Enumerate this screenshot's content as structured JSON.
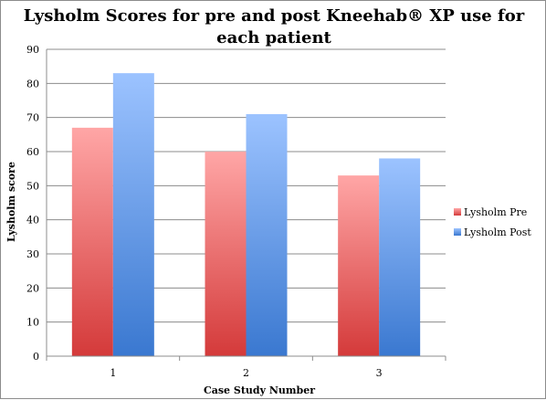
{
  "chart_data": {
    "type": "bar",
    "title_line1": "Lysholm Scores for pre and post Kneehab® XP  use for",
    "title_line2": "each patient",
    "xlabel": "Case Study Number",
    "ylabel": "Lysholm score",
    "categories": [
      "1",
      "2",
      "3"
    ],
    "ylim": [
      0,
      90
    ],
    "yticks": [
      "0",
      "10",
      "20",
      "30",
      "40",
      "50",
      "60",
      "70",
      "80",
      "90"
    ],
    "grid": true,
    "legend_position": "right",
    "series": [
      {
        "name": "Lysholm Pre",
        "values": [
          67,
          60,
          53
        ],
        "color_top": "#ffa6a6",
        "color_bottom": "#d43a3a"
      },
      {
        "name": "Lysholm Post",
        "values": [
          83,
          71,
          58
        ],
        "color_top": "#9cc3ff",
        "color_bottom": "#3a78d0"
      }
    ]
  }
}
